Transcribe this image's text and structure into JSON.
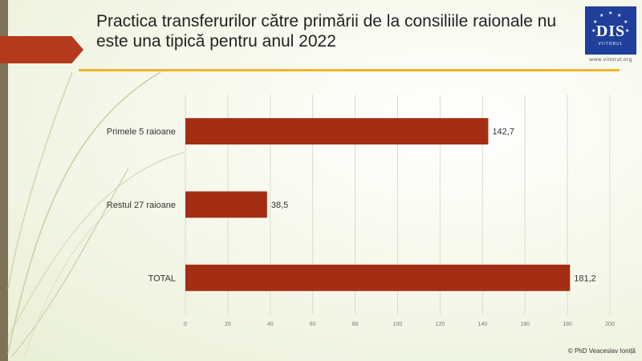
{
  "slide": {
    "title": "Practica transferurilor către primării de la consiliile raionale nu este una tipică pentru anul 2022",
    "copyright": "© PhD Veaceslav Ioniță",
    "logo": {
      "text": "DIS",
      "subtext": "VIITORUL",
      "url": "www.viitorul.org"
    }
  },
  "colors": {
    "bar": "#a32e14",
    "accent_tab": "#b5391c",
    "rule": "#f0b429",
    "grid": "#d8dccb",
    "logo_bg": "#1f3f9a",
    "left_band": "#7d7458"
  },
  "chart_data": {
    "type": "bar",
    "orientation": "horizontal",
    "categories": [
      "Primele 5 raioane",
      "Restul 27 raioane",
      "TOTAL"
    ],
    "values": [
      142.7,
      38.5,
      181.2
    ],
    "value_labels": [
      "142,7",
      "38,5",
      "181,2"
    ],
    "xlim": [
      0,
      200
    ],
    "xticks": [
      0,
      20,
      40,
      60,
      80,
      100,
      120,
      140,
      160,
      180,
      200
    ],
    "grid": true,
    "legend": "none",
    "title": "",
    "xlabel": "",
    "ylabel": ""
  }
}
